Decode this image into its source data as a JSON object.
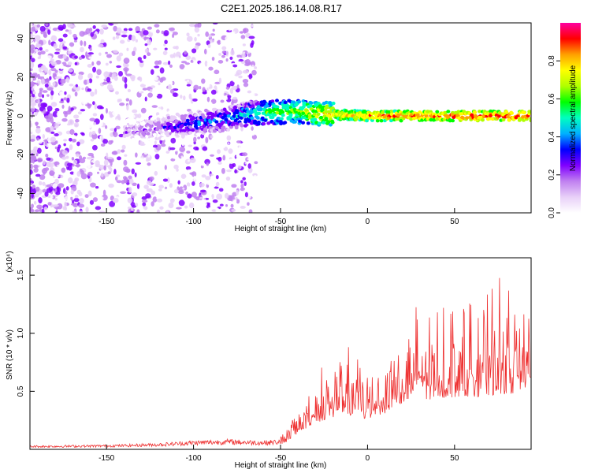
{
  "figure": {
    "title": "C2E1.2025.186.14.08.R17"
  },
  "chart_data": [
    {
      "type": "heatmap",
      "xlabel": "Height of straight line (km)",
      "ylabel": "Frequency (Hz)",
      "xlim": [
        -194,
        94
      ],
      "ylim": [
        -50,
        48
      ],
      "x_ticks": [
        -150,
        -100,
        -50,
        0,
        50
      ],
      "y_ticks": [
        -40,
        -20,
        0,
        20,
        40
      ],
      "x_tick_labels": [
        "-150",
        "-100",
        "-50",
        "0",
        "50"
      ],
      "y_tick_labels": [
        "-40",
        "-20",
        "0",
        "20",
        "40"
      ],
      "colorbar": {
        "label": "Normalized spectral amplitude",
        "range": [
          0,
          1
        ],
        "ticks": [
          0.0,
          0.2,
          0.4,
          0.6,
          0.8
        ],
        "tick_labels": [
          "0.0",
          "0.2",
          "0.4",
          "0.6",
          "0.8"
        ],
        "colormap": [
          "#ffffff",
          "#e8d0f8",
          "#c080f0",
          "#8000ff",
          "#0000ff",
          "#00b0ff",
          "#00ffc0",
          "#00ff00",
          "#b0ff00",
          "#ffff00",
          "#ffa000",
          "#ff0000",
          "#ff00a0"
        ]
      },
      "ridge": [
        {
          "x": -135,
          "y": -8,
          "amp": 0.25
        },
        {
          "x": -120,
          "y": -6,
          "amp": 0.3
        },
        {
          "x": -100,
          "y": -4,
          "amp": 0.4
        },
        {
          "x": -85,
          "y": -2,
          "amp": 0.45
        },
        {
          "x": -70,
          "y": 1,
          "amp": 0.5
        },
        {
          "x": -55,
          "y": 2,
          "amp": 0.65
        },
        {
          "x": -40,
          "y": 2,
          "amp": 0.7
        },
        {
          "x": -25,
          "y": 1,
          "amp": 0.8
        },
        {
          "x": 0,
          "y": 0,
          "amp": 0.9
        },
        {
          "x": 25,
          "y": 0,
          "amp": 0.92
        },
        {
          "x": 50,
          "y": 0,
          "amp": 0.95
        },
        {
          "x": 94,
          "y": 0,
          "amp": 0.95
        }
      ]
    },
    {
      "type": "line",
      "xlabel": "Height of straight line (km)",
      "ylabel": "SNR (10 * v/v)",
      "scale_label": "(x10⁴)",
      "xlim": [
        -194,
        94
      ],
      "ylim": [
        0,
        1.65
      ],
      "x_ticks": [
        -150,
        -100,
        -50,
        0,
        50
      ],
      "y_ticks": [
        0.5,
        1.0,
        1.5
      ],
      "x_tick_labels": [
        "-150",
        "-100",
        "-50",
        "0",
        "50"
      ],
      "y_tick_labels": [
        "0.5",
        "1.0",
        "1.5"
      ],
      "series": [
        {
          "color": "#ee3030",
          "envelope_x": [
            -194,
            -160,
            -140,
            -120,
            -100,
            -80,
            -60,
            -50,
            -45,
            -40,
            -35,
            -30,
            -25,
            -20,
            -15,
            -10,
            -5,
            0,
            5,
            10,
            15,
            20,
            25,
            30,
            35,
            40,
            45,
            50,
            55,
            60,
            65,
            70,
            75,
            80,
            85,
            90,
            94
          ],
          "envelope_y": [
            0.03,
            0.035,
            0.04,
            0.05,
            0.07,
            0.08,
            0.07,
            0.08,
            0.15,
            0.28,
            0.35,
            0.45,
            0.5,
            0.55,
            0.55,
            0.58,
            0.55,
            0.5,
            0.58,
            0.62,
            0.7,
            0.78,
            0.8,
            0.82,
            0.85,
            0.85,
            0.88,
            0.9,
            0.92,
            0.9,
            0.9,
            0.92,
            0.95,
            0.95,
            0.95,
            0.98,
            1.05
          ]
        }
      ]
    }
  ]
}
